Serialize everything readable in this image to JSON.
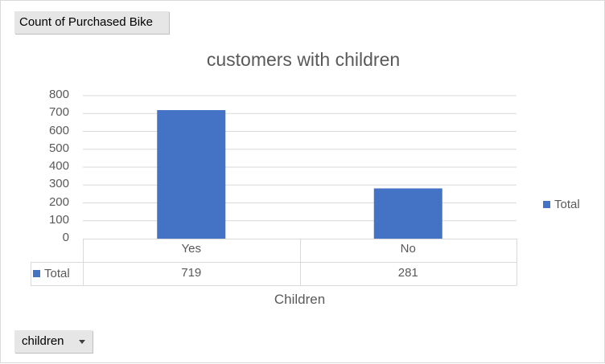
{
  "field_buttons": {
    "value_field": "Count of Purchased Bike",
    "axis_field": "children"
  },
  "colors": {
    "series": "#4472c4",
    "gridline": "#d9d9d9",
    "text": "#595959"
  },
  "icons": {
    "axis_field_dropdown": "chevron-down-icon"
  },
  "chart_data": {
    "type": "bar",
    "title": "customers with children",
    "xlabel": "Children",
    "ylabel": "",
    "categories": [
      "Yes",
      "No"
    ],
    "series": [
      {
        "name": "Total",
        "values": [
          719,
          281
        ]
      }
    ],
    "ylim": [
      0,
      800
    ],
    "yticks": [
      0,
      100,
      200,
      300,
      400,
      500,
      600,
      700,
      800
    ],
    "grid": true,
    "legend": "right",
    "data_table": true
  }
}
